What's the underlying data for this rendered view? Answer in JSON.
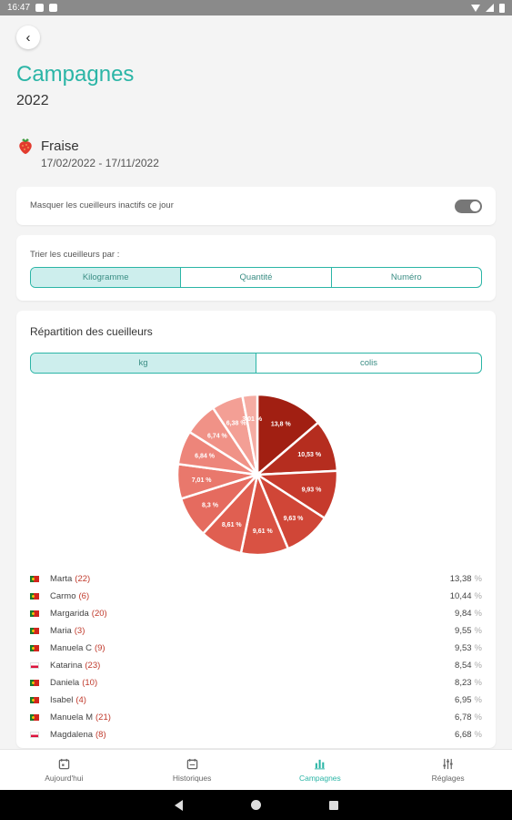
{
  "status_bar": {
    "time": "16:47"
  },
  "header": {
    "title": "Campagnes",
    "year": "2022"
  },
  "fruit": {
    "name": "Fraise",
    "dates": "17/02/2022 - 17/11/2022",
    "icon": "strawberry-icon"
  },
  "toggle_card": {
    "label": "Masquer les cueilleurs inactifs ce jour",
    "enabled": true
  },
  "sort_card": {
    "label": "Trier les cueilleurs par :",
    "options": [
      "Kilogramme",
      "Quantité",
      "Numéro"
    ],
    "selected": "Kilogramme"
  },
  "repartition": {
    "title": "Répartition des cueilleurs",
    "unit_options": [
      "kg",
      "colis"
    ],
    "selected_unit": "kg"
  },
  "chart_data": {
    "type": "pie",
    "unit": "%",
    "slices": [
      {
        "label": "13,8 %",
        "value": 13.8,
        "color": "#a11f12"
      },
      {
        "label": "10,53 %",
        "value": 10.53,
        "color": "#b52d1f"
      },
      {
        "label": "9,93 %",
        "value": 9.93,
        "color": "#c63a2c"
      },
      {
        "label": "9,63 %",
        "value": 9.63,
        "color": "#d04637"
      },
      {
        "label": "9,61 %",
        "value": 9.61,
        "color": "#d95243"
      },
      {
        "label": "8,61 %",
        "value": 8.61,
        "color": "#e05f51"
      },
      {
        "label": "8,3 %",
        "value": 8.3,
        "color": "#e56b5f"
      },
      {
        "label": "7,01 %",
        "value": 7.01,
        "color": "#e9786c"
      },
      {
        "label": "6,84 %",
        "value": 6.84,
        "color": "#ed857a"
      },
      {
        "label": "6,74 %",
        "value": 6.74,
        "color": "#f09287"
      },
      {
        "label": "6,38 %",
        "value": 6.38,
        "color": "#f39f95"
      },
      {
        "label": "3,01 %",
        "value": 3.01,
        "color": "#f5aca3"
      }
    ]
  },
  "pickers": [
    {
      "flag": "pt",
      "name": "Marta",
      "count": "(22)",
      "pct": "13,38",
      "sign": "%"
    },
    {
      "flag": "pt",
      "name": "Carmo",
      "count": "(6)",
      "pct": "10,44",
      "sign": "%"
    },
    {
      "flag": "pt",
      "name": "Margarida",
      "count": "(20)",
      "pct": "9,84",
      "sign": "%"
    },
    {
      "flag": "pt",
      "name": "Maria",
      "count": "(3)",
      "pct": "9,55",
      "sign": "%"
    },
    {
      "flag": "pt",
      "name": "Manuela C",
      "count": "(9)",
      "pct": "9,53",
      "sign": "%"
    },
    {
      "flag": "pl",
      "name": "Katarina",
      "count": "(23)",
      "pct": "8,54",
      "sign": "%"
    },
    {
      "flag": "pt",
      "name": "Daniela",
      "count": "(10)",
      "pct": "8,23",
      "sign": "%"
    },
    {
      "flag": "pt",
      "name": "Isabel",
      "count": "(4)",
      "pct": "6,95",
      "sign": "%"
    },
    {
      "flag": "pt",
      "name": "Manuela M",
      "count": "(21)",
      "pct": "6,78",
      "sign": "%"
    },
    {
      "flag": "pl",
      "name": "Magdalena",
      "count": "(8)",
      "pct": "6,68",
      "sign": "%"
    }
  ],
  "bottom_nav": [
    {
      "label": "Aujourd'hui",
      "icon": "calendar-today-icon",
      "active": false
    },
    {
      "label": "Historiques",
      "icon": "calendar-history-icon",
      "active": false
    },
    {
      "label": "Campagnes",
      "icon": "bar-chart-icon",
      "active": true
    },
    {
      "label": "Réglages",
      "icon": "sliders-icon",
      "active": false
    }
  ],
  "colors": {
    "accent": "#2bb5a6",
    "accent_light": "#cdeeed",
    "count_red": "#c0392b"
  }
}
